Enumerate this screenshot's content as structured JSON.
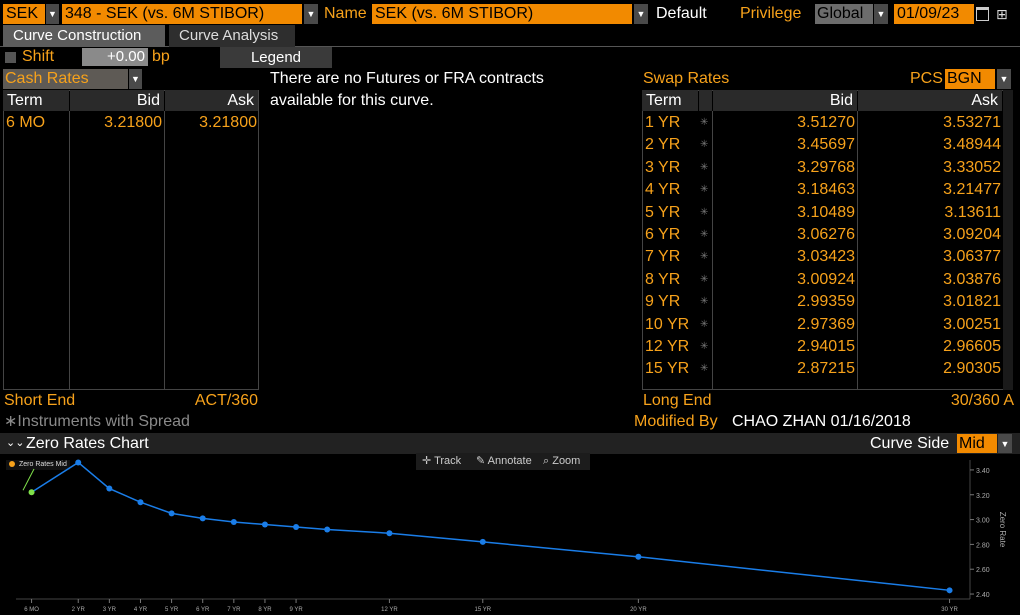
{
  "toolbar": {
    "ccy": "SEK",
    "curve_id": "348 - SEK (vs. 6M STIBOR)",
    "name_label": "Name",
    "name_value": "SEK (vs. 6M STIBOR)",
    "default_label": "Default",
    "privilege_label": "Privilege",
    "privilege_value": "Global",
    "date": "01/09/23"
  },
  "tabs": [
    {
      "label": "Curve Construction",
      "active": true
    },
    {
      "label": "Curve Analysis",
      "active": false
    }
  ],
  "shift": {
    "label": "Shift",
    "value": "+0.00",
    "unit": "bp",
    "legend_label": "Legend"
  },
  "cash": {
    "selector": "Cash Rates",
    "headers": {
      "term": "Term",
      "bid": "Bid",
      "ask": "Ask"
    },
    "rows": [
      {
        "term": "6 MO",
        "bid": "3.21800",
        "ask": "3.21800"
      }
    ],
    "footer_left": "Short End",
    "footer_right": "ACT/360"
  },
  "futures_message": "There are no Futures or FRA contracts available for this curve.",
  "swap": {
    "title": "Swap Rates",
    "pcs_label": "PCS",
    "pcs_value": "BGN",
    "headers": {
      "term": "Term",
      "bid": "Bid",
      "ask": "Ask"
    },
    "rows": [
      {
        "term": "1 YR",
        "bid": "3.51270",
        "ask": "3.53271"
      },
      {
        "term": "2 YR",
        "bid": "3.45697",
        "ask": "3.48944"
      },
      {
        "term": "3 YR",
        "bid": "3.29768",
        "ask": "3.33052"
      },
      {
        "term": "4 YR",
        "bid": "3.18463",
        "ask": "3.21477"
      },
      {
        "term": "5 YR",
        "bid": "3.10489",
        "ask": "3.13611"
      },
      {
        "term": "6 YR",
        "bid": "3.06276",
        "ask": "3.09204"
      },
      {
        "term": "7 YR",
        "bid": "3.03423",
        "ask": "3.06377"
      },
      {
        "term": "8 YR",
        "bid": "3.00924",
        "ask": "3.03876"
      },
      {
        "term": "9 YR",
        "bid": "2.99359",
        "ask": "3.01821"
      },
      {
        "term": "10 YR",
        "bid": "2.97369",
        "ask": "3.00251"
      },
      {
        "term": "12 YR",
        "bid": "2.94015",
        "ask": "2.96605"
      },
      {
        "term": "15 YR",
        "bid": "2.87215",
        "ask": "2.90305"
      }
    ],
    "footer_left": "Long End",
    "footer_right": "30/360 A",
    "modified_label": "Modified By",
    "modified_value": "CHAO ZHAN 01/16/2018"
  },
  "spread_note": "∗Instruments with Spread",
  "chart_panel": {
    "title": "Zero Rates Chart",
    "curve_side_label": "Curve Side",
    "curve_side_value": "Mid",
    "tools": [
      "Track",
      "Annotate",
      "Zoom"
    ],
    "legend": "Zero Rates Mid"
  },
  "chart_data": {
    "type": "line",
    "ylabel": "Zero Rate",
    "ylim": [
      2.36,
      3.48
    ],
    "yticks": [
      2.4,
      2.6,
      2.8,
      3.0,
      3.2,
      3.4
    ],
    "ytick_labels": [
      "2.40",
      "2.60",
      "2.80",
      "3.00",
      "3.20",
      "3.40"
    ],
    "xlim": [
      0.0,
      30.4
    ],
    "xticks": [
      0.5,
      2,
      3,
      4,
      5,
      6,
      7,
      8,
      9,
      12,
      15,
      20,
      30
    ],
    "xtick_labels": [
      "6 MO",
      "2 YR",
      "3 YR",
      "4 YR",
      "5 YR",
      "6 YR",
      "7 YR",
      "8 YR",
      "9 YR",
      "12 YR",
      "15 YR",
      "20 YR",
      "30 YR"
    ],
    "series": [
      {
        "name": "Zero Rates Mid",
        "x": [
          0.5,
          2,
          3,
          4,
          5,
          6,
          7,
          8,
          9,
          10,
          12,
          15,
          20,
          30
        ],
        "y": [
          3.22,
          3.46,
          3.25,
          3.14,
          3.05,
          3.01,
          2.98,
          2.96,
          2.94,
          2.92,
          2.89,
          2.82,
          2.7,
          2.43
        ]
      }
    ],
    "colors": {
      "line": "#1a7de8",
      "first_point": "#7fe04a"
    }
  }
}
